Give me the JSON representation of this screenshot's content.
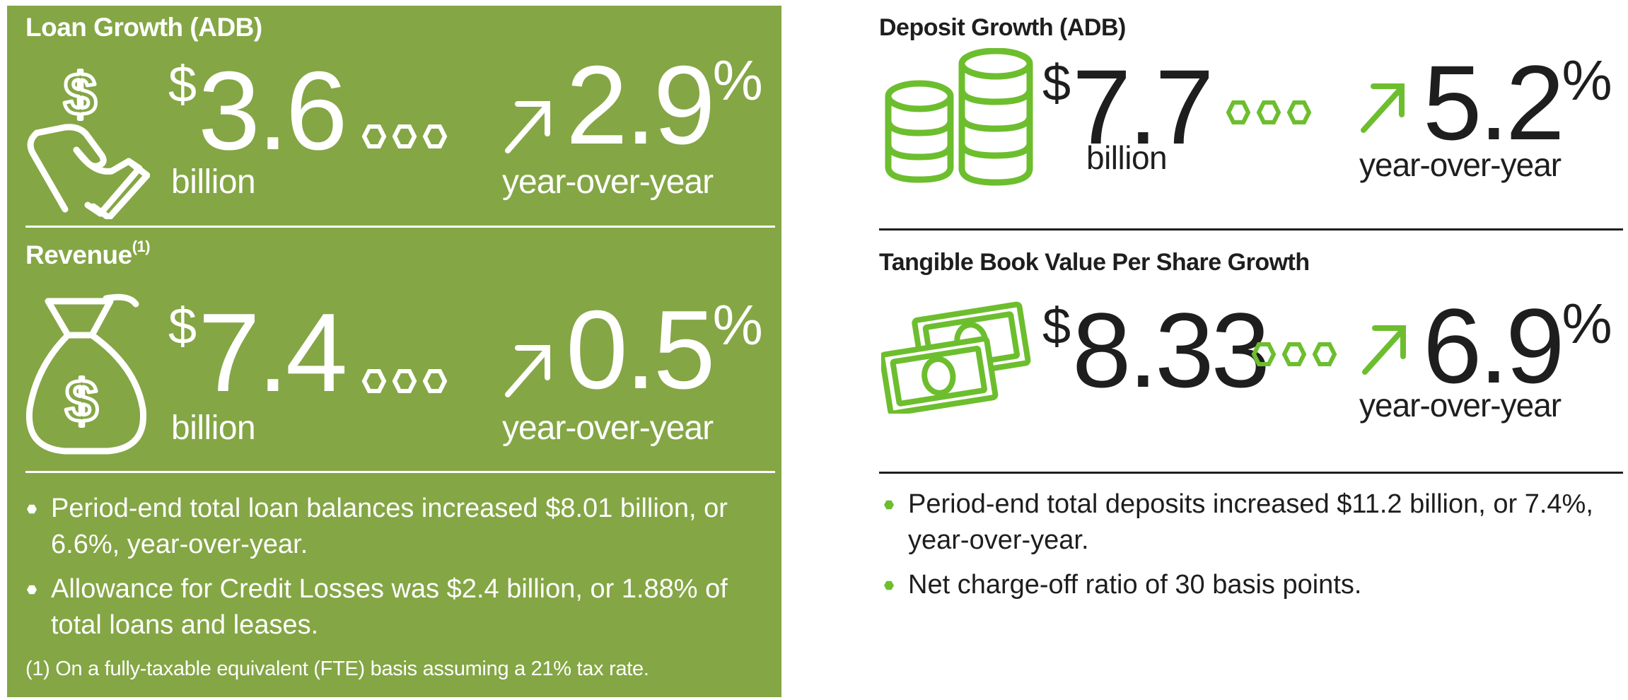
{
  "left_panel": {
    "loan": {
      "title": "Loan Growth (ADB)",
      "currency": "$",
      "amount": "3.6",
      "unit": "billion",
      "pct": "2.9",
      "pct_sign": "%",
      "yoy": "year-over-year"
    },
    "revenue": {
      "title": "Revenue",
      "title_sup": "(1)",
      "currency": "$",
      "amount": "7.4",
      "unit": "billion",
      "pct": "0.5",
      "pct_sign": "%",
      "yoy": "year-over-year"
    },
    "bullets": [
      "Period-end total loan balances increased $8.01 billion, or 6.6%, year-over-year.",
      "Allowance for Credit Losses was $2.4 billion, or 1.88% of total loans and leases."
    ],
    "footnote": "(1)  On a fully-taxable equivalent (FTE) basis assuming a 21% tax rate."
  },
  "right_panel": {
    "deposit": {
      "title": "Deposit Growth (ADB)",
      "currency": "$",
      "amount": "7.7",
      "unit": "billion",
      "pct": "5.2",
      "pct_sign": "%",
      "yoy": "year-over-year"
    },
    "tbv": {
      "title": "Tangible Book Value Per Share Growth",
      "currency": "$",
      "amount": "8.33",
      "pct": "6.9",
      "pct_sign": "%",
      "yoy": "year-over-year"
    },
    "bullets": [
      "Period-end total deposits increased $11.2 billion, or 7.4%, year-over-year.",
      "Net charge-off ratio of 30 basis points."
    ]
  },
  "colors": {
    "panel_green": "#84a645",
    "accent_green": "#6dbe2e",
    "text_dark": "#1e1e1e",
    "white": "#ffffff"
  },
  "icons": [
    "hand-dollar-icon",
    "money-bag-icon",
    "coin-stacks-icon",
    "banknotes-icon",
    "up-arrow-icon",
    "hexagon-dots-icon"
  ]
}
